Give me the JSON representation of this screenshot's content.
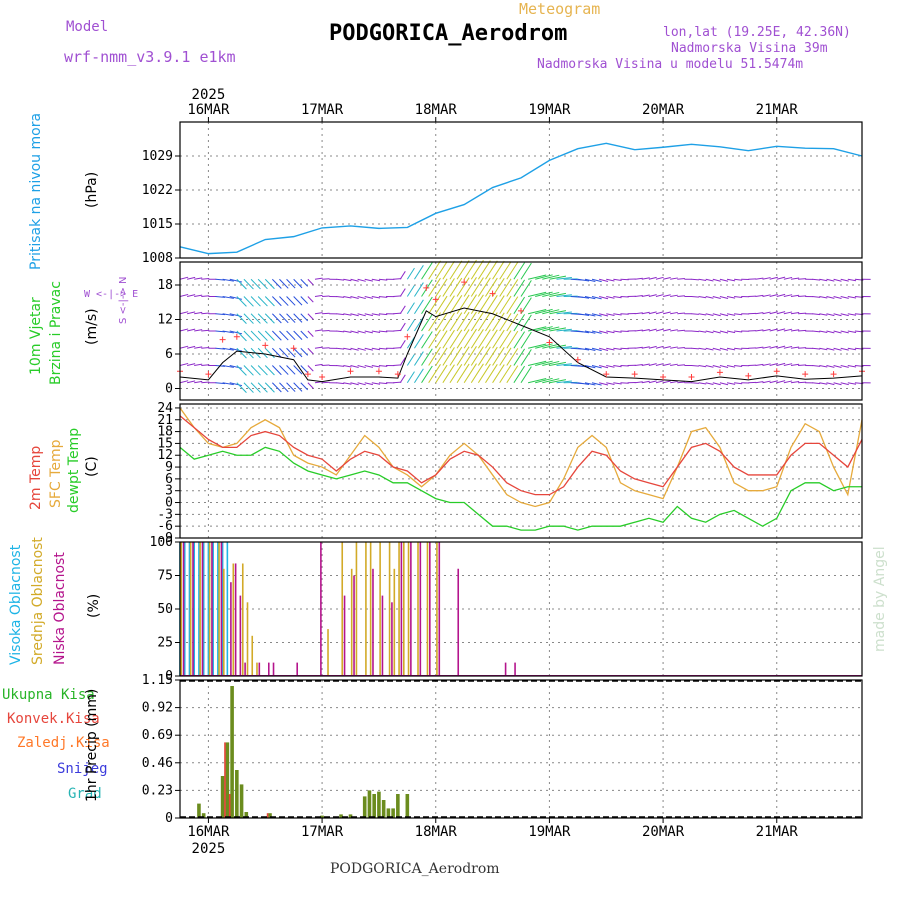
{
  "header": {
    "model_label": "Model",
    "model_name": "wrf-nmm_v3.9.1 e1km",
    "chart_type_label": "Meteogram",
    "station": "PODGORICA_Aerodrom",
    "lonlat": "lon,lat (19.25E, 42.36N)",
    "elevation": "Nadmorska Visina 39m",
    "model_elevation": "Nadmorska Visina u modelu 51.5474m",
    "footer_station": "PODGORICA_Aerodrom",
    "watermark": "made by Angel"
  },
  "time_axis": {
    "year": "2025",
    "days": [
      "16MAR",
      "17MAR",
      "18MAR",
      "19MAR",
      "20MAR",
      "21MAR"
    ],
    "start_hour_offset": -6,
    "end_hour_offset": 138
  },
  "colors": {
    "pressure": "#1ea0e6",
    "temp2m": "#e6463c",
    "sfc_temp": "#e6aa3c",
    "dewpt": "#28cc28",
    "precip_total": "#6b8c1e",
    "cloud_high": "#1eb4e6",
    "cloud_mid": "#d2aa28",
    "cloud_low": "#b4148c",
    "wind_speed_line": "#000000",
    "wind_gust": "#ff3c3c"
  },
  "panels": {
    "pressure": {
      "ylabel_left": "Pritisak na nivou mora",
      "unit": "(hPa)",
      "ticks": [
        1008,
        1015,
        1022,
        1029
      ]
    },
    "wind": {
      "ylabel_left_1": "10m Vjetar",
      "ylabel_left_2": "Brzina i Pravac",
      "unit": "(m/s)",
      "ticks": [
        0,
        6,
        12,
        18
      ],
      "compass": "W <-|-> E",
      "compass_v": "S <-|-> N"
    },
    "temperature": {
      "ylabel_1": "2m Temp",
      "ylabel_2": "SFC Temp",
      "ylabel_3": "dewpt Temp",
      "unit": "(C)",
      "ticks": [
        -9,
        -6,
        -3,
        0,
        3,
        6,
        9,
        12,
        15,
        18,
        21,
        24
      ]
    },
    "cloud": {
      "ylabel_1": "Visoka Oblacnost",
      "ylabel_2": "Srednja Oblacnost",
      "ylabel_3": "Niska Oblacnost",
      "unit": "(%)",
      "ticks": [
        0,
        25,
        50,
        75,
        100
      ]
    },
    "precip": {
      "legend": [
        "Ukupna Kisa",
        "Konvek.Kisa",
        "Zaledj.Kisa",
        "Snijeg",
        "Grad"
      ],
      "legend_colors": [
        "#28b428",
        "#e6463c",
        "#ff7828",
        "#3c3cdc",
        "#28b4b4"
      ],
      "unit": "1hr Precip (mm)",
      "ticks": [
        0,
        0.23,
        0.46,
        0.69,
        0.92,
        1.15
      ]
    }
  },
  "chart_data": [
    {
      "type": "line",
      "name": "pressure",
      "x_unit": "hours from 16MAR 00UTC",
      "ylim": [
        1008,
        1036
      ],
      "x": [
        -6,
        0,
        6,
        12,
        18,
        24,
        30,
        36,
        42,
        48,
        54,
        60,
        66,
        72,
        78,
        84,
        90,
        96,
        102,
        108,
        114,
        120,
        126,
        132,
        138
      ],
      "values": [
        1010.3,
        1008.9,
        1009.2,
        1011.8,
        1012.4,
        1014.2,
        1014.6,
        1014.1,
        1014.3,
        1017.2,
        1019.0,
        1022.5,
        1024.5,
        1028.1,
        1030.5,
        1031.6,
        1030.3,
        1030.8,
        1031.4,
        1030.9,
        1030.1,
        1031.0,
        1030.6,
        1030.5,
        1029.0
      ]
    },
    {
      "type": "line",
      "name": "wind",
      "ylim": [
        -2,
        22
      ],
      "x": [
        -6,
        0,
        3,
        6,
        12,
        18,
        21,
        24,
        30,
        36,
        40,
        42,
        46,
        48,
        54,
        60,
        66,
        72,
        78,
        84,
        90,
        96,
        102,
        108,
        114,
        120,
        126,
        132,
        138
      ],
      "speed": [
        2.0,
        1.5,
        4.5,
        6.5,
        6.0,
        5.0,
        1.5,
        1.2,
        2.0,
        2.0,
        1.8,
        6.0,
        13.5,
        12.5,
        14.0,
        13.0,
        11.0,
        9.0,
        4.5,
        2.0,
        1.8,
        1.5,
        1.2,
        2.0,
        1.5,
        2.2,
        1.6,
        1.8,
        2.2
      ],
      "gust": [
        3.0,
        2.5,
        8.5,
        9.0,
        7.5,
        7.0,
        2.5,
        2.0,
        3.0,
        3.0,
        2.5,
        9.0,
        17.5,
        15.5,
        18.5,
        16.5,
        13.5,
        8.0,
        5.0,
        2.5,
        2.5,
        2.0,
        2.0,
        2.8,
        2.2,
        3.0,
        2.5,
        2.5,
        3.0
      ]
    },
    {
      "type": "line",
      "name": "temperature",
      "ylim": [
        -9,
        25
      ],
      "x": [
        -6,
        -3,
        0,
        3,
        6,
        9,
        12,
        15,
        18,
        21,
        24,
        27,
        30,
        33,
        36,
        39,
        42,
        45,
        48,
        51,
        54,
        57,
        60,
        63,
        66,
        69,
        72,
        75,
        78,
        81,
        84,
        87,
        90,
        93,
        96,
        99,
        102,
        105,
        108,
        111,
        114,
        117,
        120,
        123,
        126,
        129,
        132,
        135,
        138
      ],
      "temp2m": [
        22,
        19,
        16,
        14,
        14,
        17,
        18,
        17,
        14,
        12,
        11,
        8,
        11,
        13,
        12,
        9,
        8,
        5,
        7,
        11,
        13,
        12,
        9,
        5,
        3,
        2,
        2,
        4,
        9,
        13,
        12,
        8,
        6,
        5,
        4,
        9,
        14,
        15,
        13,
        9,
        7,
        7,
        7,
        12,
        15,
        15,
        12,
        9,
        16
      ],
      "sfc": [
        24,
        19,
        15,
        14,
        15,
        19,
        21,
        19,
        12,
        10,
        9,
        7,
        12,
        17,
        14,
        9,
        7,
        4,
        7,
        12,
        15,
        12,
        7,
        2,
        0,
        -1,
        0,
        6,
        14,
        17,
        14,
        5,
        3,
        2,
        1,
        9,
        18,
        19,
        14,
        5,
        3,
        3,
        4,
        14,
        20,
        18,
        9,
        2,
        21
      ],
      "dewpt": [
        14,
        11,
        12,
        13,
        12,
        12,
        14,
        13,
        10,
        8,
        7,
        6,
        7,
        8,
        7,
        5,
        5,
        3,
        1,
        0,
        0,
        -3,
        -6,
        -6,
        -7,
        -7,
        -6,
        -6,
        -7,
        -6,
        -6,
        -6,
        -5,
        -4,
        -5,
        -1,
        -4,
        -5,
        -3,
        -2,
        -4,
        -6,
        -4,
        3,
        5,
        5,
        3,
        4,
        4
      ]
    },
    {
      "type": "bar",
      "name": "cloud",
      "ylim": [
        0,
        100
      ],
      "high": {
        "x": [
          -6,
          -5,
          -4,
          -3,
          -2,
          -1,
          0,
          1,
          2,
          3,
          4
        ],
        "values": [
          100,
          100,
          100,
          100,
          100,
          100,
          100,
          100,
          100,
          100,
          100
        ]
      },
      "mid": {
        "x": [
          -6,
          -4,
          -2,
          0,
          2,
          3,
          5,
          7,
          8,
          9,
          10,
          25,
          28,
          30,
          31,
          33,
          34,
          36,
          38,
          39,
          40,
          41,
          42,
          44,
          46,
          48
        ],
        "values": [
          100,
          100,
          100,
          100,
          100,
          80,
          84,
          84,
          55,
          30,
          10,
          35,
          100,
          80,
          100,
          100,
          100,
          100,
          100,
          80,
          100,
          100,
          100,
          100,
          100,
          100
        ]
      },
      "low": {
        "x": [
          -5,
          -3,
          -1,
          1,
          3,
          5,
          6,
          7,
          8,
          11,
          13,
          14,
          19,
          24,
          29,
          31,
          35,
          37,
          39,
          41,
          43,
          45,
          47,
          49,
          53,
          63,
          65
        ],
        "values": [
          100,
          100,
          100,
          100,
          100,
          70,
          84,
          60,
          10,
          10,
          10,
          10,
          10,
          100,
          60,
          75,
          80,
          60,
          55,
          100,
          100,
          100,
          100,
          100,
          80,
          10,
          10
        ]
      }
    },
    {
      "type": "bar",
      "name": "precip",
      "ylim": [
        0,
        1.15
      ],
      "x": [
        -2,
        -1,
        3,
        4,
        5,
        6,
        7,
        8,
        13,
        24,
        28,
        30,
        33,
        34,
        35,
        36,
        37,
        38,
        39,
        40,
        42
      ],
      "total": [
        0.12,
        0.04,
        0.35,
        0.63,
        1.1,
        0.4,
        0.28,
        0.05,
        0.04,
        0.02,
        0.03,
        0.03,
        0.18,
        0.23,
        0.2,
        0.22,
        0.15,
        0.08,
        0.08,
        0.2,
        0.2
      ],
      "convective": [
        0.0,
        0.0,
        0.0,
        0.63,
        0.2,
        0.0,
        0.0,
        0.0,
        0.04,
        0.0,
        0.0,
        0.0,
        0.0,
        0.0,
        0.0,
        0.0,
        0.0,
        0.0,
        0.0,
        0.0,
        0.0
      ]
    }
  ]
}
